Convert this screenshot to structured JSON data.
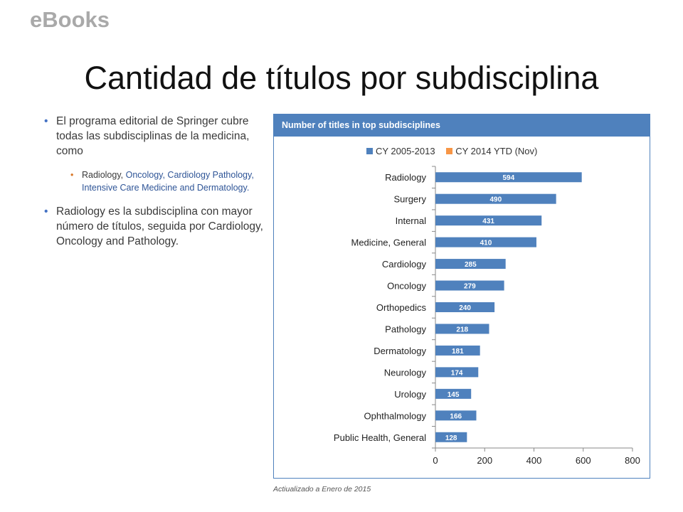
{
  "header": {
    "kicker": "eBooks",
    "title": "Cantidad de títulos por subdisciplina"
  },
  "bullets": {
    "b1": "El programa editorial de Springer cubre todas las subdisciplinas de la medicina, como",
    "b2_part1": "Radiology, ",
    "b2_part2": "Oncology, Cardiology Pathology, Intensive Care Medicine and Dermatology.",
    "b3": "Radiology  es la subdisciplina con mayor número de títulos,  seguida por Cardiology, Oncology and Pathology."
  },
  "chart_data": {
    "type": "bar",
    "orientation": "horizontal",
    "title": "Number of titles in top subdisciplines",
    "categories": [
      "Radiology",
      "Surgery",
      "Internal",
      "Medicine, General",
      "Cardiology",
      "Oncology",
      "Orthopedics",
      "Pathology",
      "Dermatology",
      "Neurology",
      "Urology",
      "Ophthalmology",
      "Public Health, General"
    ],
    "series": [
      {
        "name": "CY 2005-2013",
        "color": "#4f81bd",
        "values": [
          594,
          490,
          431,
          410,
          285,
          279,
          240,
          218,
          181,
          174,
          145,
          166,
          128
        ]
      },
      {
        "name": "CY 2014 YTD (Nov)",
        "color": "#f79646",
        "values": [
          0,
          0,
          0,
          0,
          0,
          0,
          0,
          0,
          0,
          0,
          0,
          0,
          0
        ]
      }
    ],
    "xlim": [
      0,
      800
    ],
    "xticks": [
      0,
      200,
      400,
      600,
      800
    ],
    "legend_position": "top",
    "grid": false
  },
  "footnote": "Actiualizado a Enero de 2015"
}
